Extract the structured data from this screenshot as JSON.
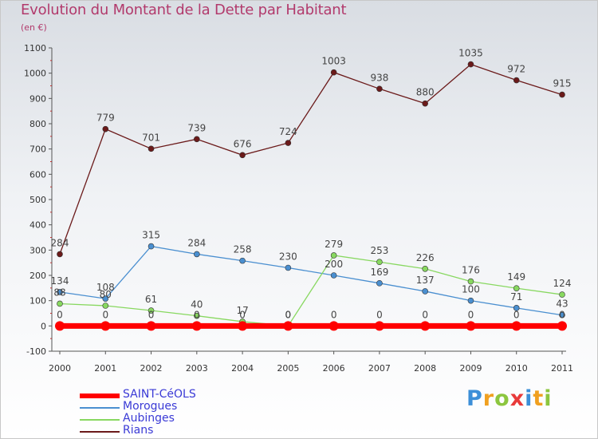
{
  "chart_data": {
    "type": "line",
    "title": "Evolution du Montant de la Dette par Habitant",
    "subtitle": "(en €)",
    "x": [
      "2000",
      "2001",
      "2002",
      "2003",
      "2004",
      "2005",
      "2006",
      "2007",
      "2008",
      "2009",
      "2010",
      "2011"
    ],
    "ylim": [
      -100,
      1100
    ],
    "yticks": [
      "-100",
      "0",
      "100",
      "200",
      "300",
      "400",
      "500",
      "600",
      "700",
      "800",
      "900",
      "1000",
      "1100"
    ],
    "grid": false,
    "legend_position": "bottom-left",
    "series": [
      {
        "name": "SAINT-CéOLS",
        "color": "#ff0000",
        "values": [
          0,
          0,
          0,
          0,
          0,
          0,
          0,
          0,
          0,
          0,
          0,
          0
        ],
        "labels": [
          "0",
          "0",
          "0",
          "0",
          "0",
          "0",
          "0",
          "0",
          "0",
          "0",
          "0",
          "0"
        ]
      },
      {
        "name": "Morogues",
        "color": "#4a8fd0",
        "values": [
          134,
          108,
          315,
          284,
          258,
          230,
          200,
          169,
          137,
          100,
          71,
          43
        ],
        "labels": [
          "134",
          "108",
          "315",
          "284",
          "258",
          "230",
          "200",
          "169",
          "137",
          "100",
          "71",
          "43"
        ]
      },
      {
        "name": "Aubinges",
        "color": "#88d860",
        "values": [
          88,
          80,
          61,
          40,
          17,
          0,
          279,
          253,
          226,
          176,
          149,
          124
        ],
        "labels": [
          "88",
          "80",
          "61",
          "40",
          "17",
          "0",
          "279",
          "253",
          "226",
          "176",
          "149",
          "124"
        ]
      },
      {
        "name": "Rians",
        "color": "#6b1a1a",
        "values": [
          284,
          779,
          701,
          739,
          676,
          724,
          1003,
          938,
          880,
          1035,
          972,
          915
        ],
        "labels": [
          "284",
          "779",
          "701",
          "739",
          "676",
          "724",
          "1003",
          "938",
          "880",
          "1035",
          "972",
          "915"
        ]
      }
    ]
  },
  "brand": {
    "letters": [
      "P",
      "r",
      "o",
      "x",
      "i",
      "t",
      "i"
    ],
    "colors": [
      "#3c8fd8",
      "#f0a020",
      "#8cc63f",
      "#e83a3a",
      "#3c8fd8",
      "#f0a020",
      "#8cc63f"
    ]
  }
}
